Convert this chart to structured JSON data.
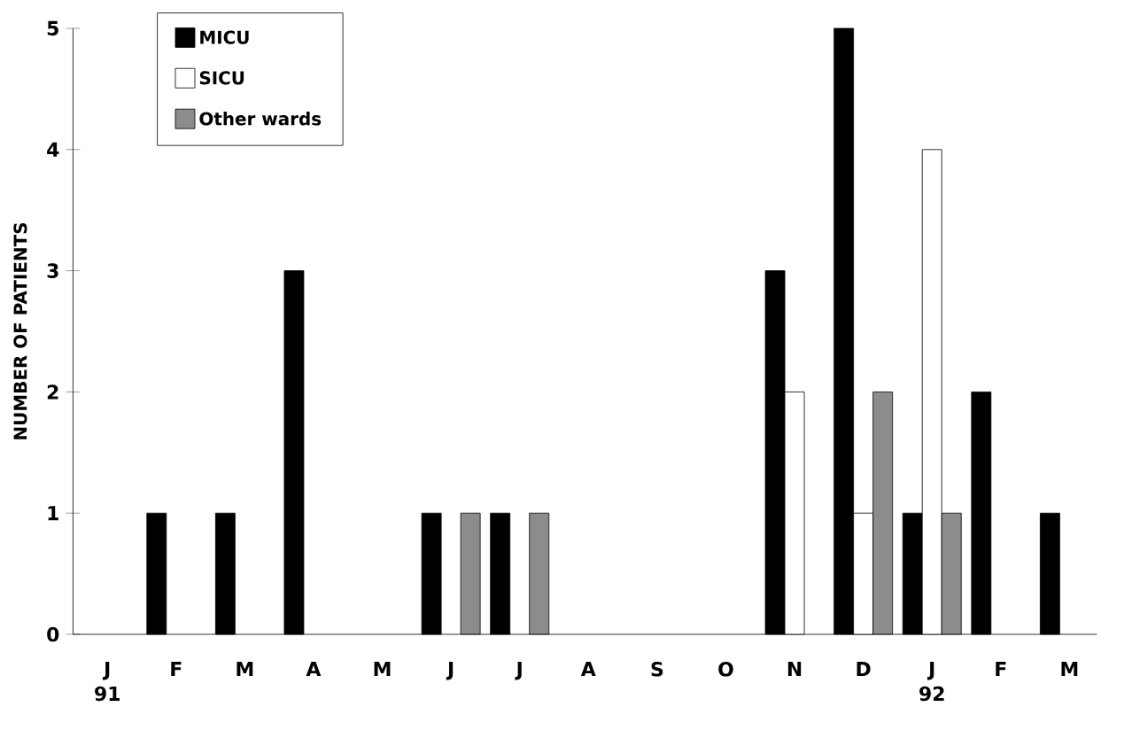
{
  "chart_data": {
    "type": "bar",
    "ylabel": "NUMBER OF PATIENTS",
    "categories": [
      "J 91",
      "F",
      "M",
      "A",
      "M",
      "J",
      "J",
      "A",
      "S",
      "O",
      "N",
      "D",
      "J 92",
      "F",
      "M"
    ],
    "series": [
      {
        "name": "MICU",
        "color": "#000000",
        "values": [
          0,
          1,
          1,
          3,
          0,
          1,
          1,
          0,
          0,
          0,
          3,
          5,
          1,
          2,
          1
        ]
      },
      {
        "name": "SICU",
        "color": "#ffffff",
        "values": [
          0,
          0,
          0,
          0,
          0,
          0,
          0,
          0,
          0,
          0,
          2,
          1,
          4,
          0,
          0
        ]
      },
      {
        "name": "Other wards",
        "color": "#8c8c8c",
        "values": [
          0,
          0,
          0,
          0,
          0,
          1,
          1,
          0,
          0,
          0,
          0,
          2,
          1,
          0,
          0
        ]
      }
    ],
    "ylim": [
      0,
      5
    ],
    "yticks": [
      0,
      1,
      2,
      3,
      4,
      5
    ],
    "grid": false,
    "legend": "top left"
  }
}
